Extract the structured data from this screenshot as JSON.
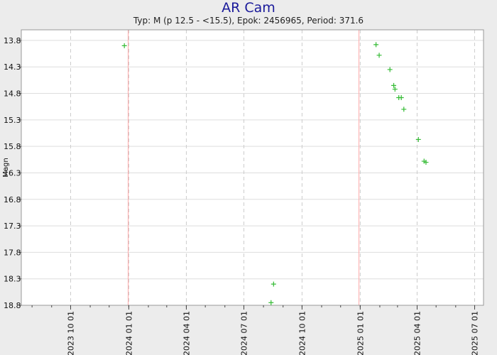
{
  "chart_data": {
    "type": "scatter",
    "title": "AR Cam",
    "subtitle": "Typ: M (p 12.5 - <15.5), Epok: 2456965, Period: 371.6",
    "xlabel": "",
    "ylabel": "Magn",
    "x_type": "date",
    "xlim": [
      "2023-07-15",
      "2025-07-15"
    ],
    "ylim": [
      13.6,
      18.8
    ],
    "y_inverted": true,
    "grid": true,
    "x_ticks": [
      "2023 10 01",
      "2024 01 01",
      "2024 04 01",
      "2024 07 01",
      "2024 10 01",
      "2025 01 01",
      "2025 04 01",
      "2025 07 01"
    ],
    "y_ticks": [
      13.8,
      14.3,
      14.8,
      15.3,
      15.8,
      16.3,
      16.8,
      17.3,
      17.8,
      18.3,
      18.8
    ],
    "marker_color": "#33bb33",
    "maxima_line_color": "#ffaaaa",
    "maxima_dates": [
      "2023-12-31",
      "2024-12-30"
    ],
    "series": [
      {
        "marker": "+",
        "points": [
          {
            "x": "2023-12-25",
            "y": 13.9
          },
          {
            "x": "2024-08-13",
            "y": 18.75
          },
          {
            "x": "2024-08-17",
            "y": 18.4
          },
          {
            "x": "2025-01-26",
            "y": 13.88
          },
          {
            "x": "2025-01-31",
            "y": 14.08
          },
          {
            "x": "2025-02-17",
            "y": 14.35
          },
          {
            "x": "2025-02-23",
            "y": 14.65
          },
          {
            "x": "2025-02-25",
            "y": 14.72
          },
          {
            "x": "2025-03-03",
            "y": 14.88
          },
          {
            "x": "2025-03-07",
            "y": 14.88
          },
          {
            "x": "2025-03-11",
            "y": 15.1
          },
          {
            "x": "2025-04-03",
            "y": 15.67
          },
          {
            "x": "2025-04-12",
            "y": 16.08
          },
          {
            "x": "2025-04-15",
            "y": 16.1
          }
        ]
      }
    ]
  }
}
